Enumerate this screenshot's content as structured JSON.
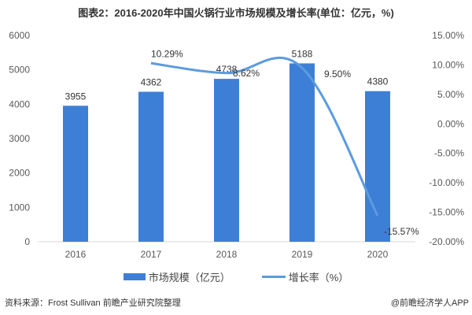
{
  "title": "图表2：2016-2020年中国火锅行业市场规模及增长率(单位：亿元，%)",
  "chart_data": {
    "type": "bar+line",
    "title": "图表2：2016-2020年中国火锅行业市场规模及增长率(单位：亿元，%)",
    "categories": [
      "2016",
      "2017",
      "2018",
      "2019",
      "2020"
    ],
    "series": [
      {
        "name": "市场规模（亿元）",
        "type": "bar",
        "axis": "left",
        "values": [
          3955,
          4362,
          4738,
          5188,
          4380
        ],
        "labels": [
          "3955",
          "4362",
          "4738",
          "5188",
          "4380"
        ],
        "color": "#3d7fd6"
      },
      {
        "name": "增长率（%）",
        "type": "line",
        "axis": "right",
        "values": [
          null,
          10.29,
          8.62,
          9.5,
          -15.57
        ],
        "labels": [
          "",
          "10.29%",
          "8.62%",
          "9.50%",
          "-15.57%"
        ],
        "color": "#5b9be0",
        "smooth": true
      }
    ],
    "left_axis": {
      "ylim": [
        0,
        6000
      ],
      "ticks": [
        "0",
        "1000",
        "2000",
        "3000",
        "4000",
        "5000",
        "6000"
      ]
    },
    "right_axis": {
      "ylim": [
        -20,
        15
      ],
      "ticks": [
        "-20.00%",
        "-15.00%",
        "-10.00%",
        "-5.00%",
        "0.00%",
        "5.00%",
        "10.00%",
        "15.00%"
      ]
    },
    "grid": false,
    "legend": "bottom"
  },
  "legend": {
    "bar": "市场规模（亿元）",
    "line": "增长率（%）"
  },
  "source": "资料来源：Frost Sullivan 前瞻产业研究院整理",
  "credit": "@前瞻经济学人APP"
}
